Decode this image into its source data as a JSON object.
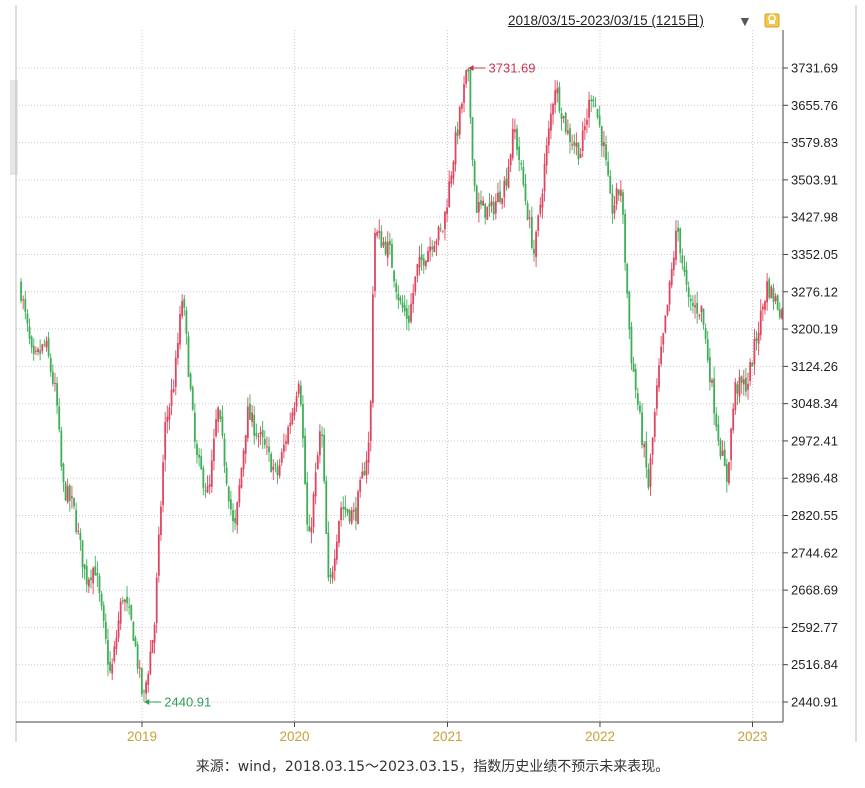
{
  "toolbar": {
    "range_label": "2018/03/15-2023/03/15 (1215日)",
    "dropdown_icon": "triangle-down-icon",
    "lock_icon": "lock-icon"
  },
  "caption": "来源：wind，2018.03.15～2023.03.15，指数历史业绩不预示未来表现。",
  "colors": {
    "up": "#e0455f",
    "down": "#3fae57",
    "grid": "#c9c9c9",
    "tick_year": "#c8a13a",
    "annot_high": "#cc3355",
    "annot_low": "#2e9e57"
  },
  "chart_data": {
    "type": "candlestick",
    "title": "",
    "xlabel": "",
    "ylabel": "",
    "x_range": [
      "2018-03-15",
      "2023-03-15"
    ],
    "ylim": [
      2440.91,
      3731.69
    ],
    "y_ticks": [
      "3731.69",
      "3655.76",
      "3579.83",
      "3503.91",
      "3427.98",
      "3352.05",
      "3276.12",
      "3200.19",
      "3124.26",
      "3048.34",
      "2972.41",
      "2896.48",
      "2820.55",
      "2744.62",
      "2668.69",
      "2592.77",
      "2516.84",
      "2440.91"
    ],
    "x_ticks": [
      {
        "label": "2019",
        "date": "2019-01-01"
      },
      {
        "label": "2020",
        "date": "2020-01-01"
      },
      {
        "label": "2021",
        "date": "2021-01-01"
      },
      {
        "label": "2022",
        "date": "2022-01-01"
      },
      {
        "label": "2023",
        "date": "2023-01-01"
      }
    ],
    "annotations": [
      {
        "label": "3731.69",
        "date": "2021-02-18",
        "value": 3731.69
      },
      {
        "label": "2440.91",
        "date": "2019-01-04",
        "value": 2440.91
      }
    ],
    "series": [
      {
        "date": "2018-03-15",
        "value": 3291
      },
      {
        "date": "2018-04-15",
        "value": 3130
      },
      {
        "date": "2018-05-15",
        "value": 3170
      },
      {
        "date": "2018-06-10",
        "value": 3060
      },
      {
        "date": "2018-06-25",
        "value": 2880
      },
      {
        "date": "2018-07-20",
        "value": 2840
      },
      {
        "date": "2018-08-20",
        "value": 2690
      },
      {
        "date": "2018-09-10",
        "value": 2720
      },
      {
        "date": "2018-10-18",
        "value": 2490
      },
      {
        "date": "2018-11-15",
        "value": 2660
      },
      {
        "date": "2018-12-10",
        "value": 2590
      },
      {
        "date": "2019-01-04",
        "value": 2441
      },
      {
        "date": "2019-01-31",
        "value": 2600
      },
      {
        "date": "2019-02-25",
        "value": 3000
      },
      {
        "date": "2019-03-20",
        "value": 3100
      },
      {
        "date": "2019-04-08",
        "value": 3270
      },
      {
        "date": "2019-05-10",
        "value": 2940
      },
      {
        "date": "2019-06-10",
        "value": 2860
      },
      {
        "date": "2019-07-01",
        "value": 3040
      },
      {
        "date": "2019-08-10",
        "value": 2780
      },
      {
        "date": "2019-09-10",
        "value": 3030
      },
      {
        "date": "2019-10-15",
        "value": 2970
      },
      {
        "date": "2019-11-20",
        "value": 2900
      },
      {
        "date": "2019-12-31",
        "value": 3050
      },
      {
        "date": "2020-01-13",
        "value": 3115
      },
      {
        "date": "2020-02-03",
        "value": 2750
      },
      {
        "date": "2020-03-05",
        "value": 3010
      },
      {
        "date": "2020-03-23",
        "value": 2660
      },
      {
        "date": "2020-04-20",
        "value": 2840
      },
      {
        "date": "2020-05-25",
        "value": 2820
      },
      {
        "date": "2020-06-30",
        "value": 2980
      },
      {
        "date": "2020-07-09",
        "value": 3400
      },
      {
        "date": "2020-08-15",
        "value": 3360
      },
      {
        "date": "2020-09-10",
        "value": 3250
      },
      {
        "date": "2020-09-30",
        "value": 3220
      },
      {
        "date": "2020-10-20",
        "value": 3320
      },
      {
        "date": "2020-11-25",
        "value": 3380
      },
      {
        "date": "2020-12-20",
        "value": 3400
      },
      {
        "date": "2021-01-20",
        "value": 3580
      },
      {
        "date": "2021-02-18",
        "value": 3731
      },
      {
        "date": "2021-03-10",
        "value": 3450
      },
      {
        "date": "2021-04-15",
        "value": 3440
      },
      {
        "date": "2021-05-20",
        "value": 3500
      },
      {
        "date": "2021-06-10",
        "value": 3610
      },
      {
        "date": "2021-07-28",
        "value": 3350
      },
      {
        "date": "2021-08-20",
        "value": 3520
      },
      {
        "date": "2021-09-15",
        "value": 3700
      },
      {
        "date": "2021-10-15",
        "value": 3600
      },
      {
        "date": "2021-11-15",
        "value": 3560
      },
      {
        "date": "2021-12-13",
        "value": 3690
      },
      {
        "date": "2022-01-10",
        "value": 3570
      },
      {
        "date": "2022-01-28",
        "value": 3440
      },
      {
        "date": "2022-02-20",
        "value": 3490
      },
      {
        "date": "2022-03-15",
        "value": 3160
      },
      {
        "date": "2022-04-27",
        "value": 2880
      },
      {
        "date": "2022-05-20",
        "value": 3100
      },
      {
        "date": "2022-06-15",
        "value": 3270
      },
      {
        "date": "2022-07-05",
        "value": 3410
      },
      {
        "date": "2022-08-01",
        "value": 3250
      },
      {
        "date": "2022-09-01",
        "value": 3240
      },
      {
        "date": "2022-10-10",
        "value": 2990
      },
      {
        "date": "2022-10-31",
        "value": 2890
      },
      {
        "date": "2022-11-20",
        "value": 3080
      },
      {
        "date": "2022-12-20",
        "value": 3090
      },
      {
        "date": "2023-01-10",
        "value": 3180
      },
      {
        "date": "2023-02-05",
        "value": 3290
      },
      {
        "date": "2023-03-15",
        "value": 3230
      }
    ]
  }
}
